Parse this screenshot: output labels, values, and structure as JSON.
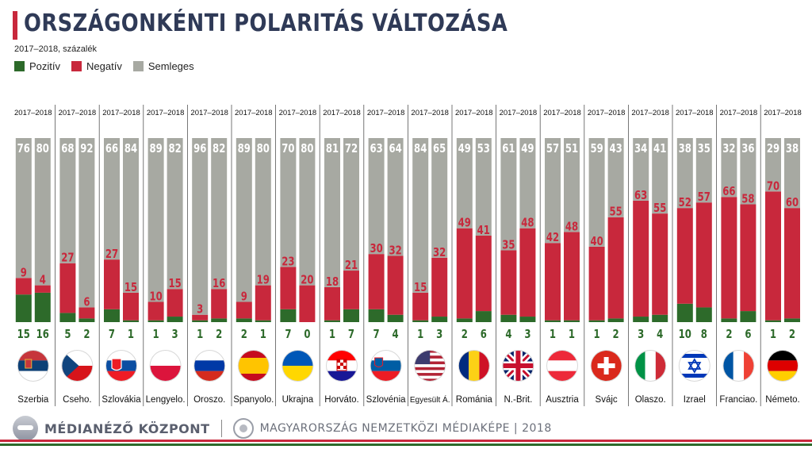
{
  "header": {
    "title": "ORSZÁGONKÉNTI POLARITÁS VÁLTOZÁSA",
    "subtitle": "2017–2018, százalék"
  },
  "legend": [
    {
      "label": "Pozitív",
      "color": "#2d6a2a"
    },
    {
      "label": "Negatív",
      "color": "#c8283c"
    },
    {
      "label": "Semleges",
      "color": "#a7a9a2"
    }
  ],
  "footer": {
    "brand": "MÉDIANÉZŐ KÖZPONT",
    "tagline": "MAGYARORSZÁG NEMZETKÖZI MÉDIAKÉPE | 2018"
  },
  "chart_data": {
    "type": "bar",
    "stacked": true,
    "title": "ORSZÁGONKÉNTI POLARITÁS VÁLTOZÁSA",
    "subtitle": "2017–2018, százalék",
    "period_label": "2017–2018",
    "series_order": [
      "Pozitív",
      "Negatív",
      "Semleges"
    ],
    "colors": {
      "Pozitív": "#2d6a2a",
      "Negatív": "#c8283c",
      "Semleges": "#a7a9a2"
    },
    "countries": [
      {
        "name": "Szerbia",
        "flag": "serbia-flag-icon",
        "y2017": {
          "pos": 15,
          "neg": 9,
          "neu": 76
        },
        "y2018": {
          "pos": 16,
          "neg": 4,
          "neu": 80
        }
      },
      {
        "name": "Cseho.",
        "flag": "czechia-flag-icon",
        "y2017": {
          "pos": 5,
          "neg": 27,
          "neu": 68
        },
        "y2018": {
          "pos": 2,
          "neg": 6,
          "neu": 92
        }
      },
      {
        "name": "Szlovákia",
        "flag": "slovakia-flag-icon",
        "y2017": {
          "pos": 7,
          "neg": 27,
          "neu": 66
        },
        "y2018": {
          "pos": 1,
          "neg": 15,
          "neu": 84
        }
      },
      {
        "name": "Lengyelo.",
        "flag": "poland-flag-icon",
        "y2017": {
          "pos": 1,
          "neg": 10,
          "neu": 89
        },
        "y2018": {
          "pos": 3,
          "neg": 15,
          "neu": 82
        }
      },
      {
        "name": "Oroszo.",
        "flag": "russia-flag-icon",
        "y2017": {
          "pos": 1,
          "neg": 3,
          "neu": 96
        },
        "y2018": {
          "pos": 2,
          "neg": 16,
          "neu": 82
        }
      },
      {
        "name": "Spanyolo.",
        "flag": "spain-flag-icon",
        "y2017": {
          "pos": 2,
          "neg": 9,
          "neu": 89
        },
        "y2018": {
          "pos": 1,
          "neg": 19,
          "neu": 80
        }
      },
      {
        "name": "Ukrajna",
        "flag": "ukraine-flag-icon",
        "y2017": {
          "pos": 7,
          "neg": 23,
          "neu": 70
        },
        "y2018": {
          "pos": 0,
          "neg": 20,
          "neu": 80
        }
      },
      {
        "name": "Horváto.",
        "flag": "croatia-flag-icon",
        "y2017": {
          "pos": 1,
          "neg": 18,
          "neu": 81
        },
        "y2018": {
          "pos": 7,
          "neg": 21,
          "neu": 72
        }
      },
      {
        "name": "Szlovénia",
        "flag": "slovenia-flag-icon",
        "y2017": {
          "pos": 7,
          "neg": 30,
          "neu": 63
        },
        "y2018": {
          "pos": 4,
          "neg": 32,
          "neu": 64
        }
      },
      {
        "name": "Egyesült Á.",
        "flag": "usa-flag-icon",
        "y2017": {
          "pos": 1,
          "neg": 15,
          "neu": 84
        },
        "y2018": {
          "pos": 3,
          "neg": 32,
          "neu": 65
        }
      },
      {
        "name": "Románia",
        "flag": "romania-flag-icon",
        "y2017": {
          "pos": 2,
          "neg": 49,
          "neu": 49
        },
        "y2018": {
          "pos": 6,
          "neg": 41,
          "neu": 53
        }
      },
      {
        "name": "N.-Brit.",
        "flag": "uk-flag-icon",
        "y2017": {
          "pos": 4,
          "neg": 35,
          "neu": 61
        },
        "y2018": {
          "pos": 3,
          "neg": 48,
          "neu": 49
        }
      },
      {
        "name": "Ausztria",
        "flag": "austria-flag-icon",
        "y2017": {
          "pos": 1,
          "neg": 42,
          "neu": 57
        },
        "y2018": {
          "pos": 1,
          "neg": 48,
          "neu": 51
        }
      },
      {
        "name": "Svájc",
        "flag": "switzerland-flag-icon",
        "y2017": {
          "pos": 1,
          "neg": 40,
          "neu": 59
        },
        "y2018": {
          "pos": 2,
          "neg": 55,
          "neu": 43
        }
      },
      {
        "name": "Olaszo.",
        "flag": "italy-flag-icon",
        "y2017": {
          "pos": 3,
          "neg": 63,
          "neu": 34
        },
        "y2018": {
          "pos": 4,
          "neg": 55,
          "neu": 41
        }
      },
      {
        "name": "Izrael",
        "flag": "israel-flag-icon",
        "y2017": {
          "pos": 10,
          "neg": 52,
          "neu": 38
        },
        "y2018": {
          "pos": 8,
          "neg": 57,
          "neu": 35
        }
      },
      {
        "name": "Franciao.",
        "flag": "france-flag-icon",
        "y2017": {
          "pos": 2,
          "neg": 66,
          "neu": 32
        },
        "y2018": {
          "pos": 6,
          "neg": 58,
          "neu": 36
        }
      },
      {
        "name": "Németo.",
        "flag": "germany-flag-icon",
        "y2017": {
          "pos": 1,
          "neg": 70,
          "neu": 29
        },
        "y2018": {
          "pos": 2,
          "neg": 60,
          "neu": 38
        }
      }
    ],
    "ylim": [
      0,
      100
    ]
  }
}
